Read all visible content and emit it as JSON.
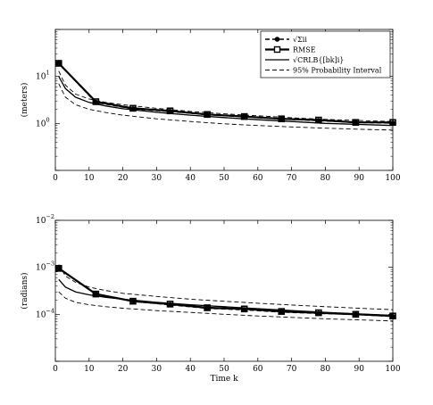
{
  "chart_data": [
    {
      "type": "line",
      "title": "",
      "xlabel": "",
      "ylabel": "(meters)",
      "yscale": "log",
      "xlim": [
        0,
        100
      ],
      "ylim_exp": [
        -1,
        2
      ],
      "x_ticks": [
        0,
        10,
        20,
        30,
        40,
        50,
        60,
        70,
        80,
        90,
        100
      ],
      "x_tick_labels": [
        "0",
        "10",
        "20",
        "30",
        "40",
        "50",
        "60",
        "70",
        "80",
        "90",
        "100"
      ],
      "y_ticks": [
        1,
        10
      ],
      "y_tick_bases": [
        "10",
        "10"
      ],
      "y_tick_exps": [
        "0",
        "1"
      ],
      "grid": false,
      "legend_position": "top-right",
      "legend": [
        {
          "label": "√Σii",
          "style": "dash-circle"
        },
        {
          "label": "RMSE",
          "style": "solid-square"
        },
        {
          "label": "√CRLB{[bk]i}",
          "style": "solid"
        },
        {
          "label": "95% Probability Interval",
          "style": "dashed"
        }
      ],
      "series": [
        {
          "name": "√Σii",
          "style": "dash-circle",
          "x": [
            1,
            12,
            23,
            34,
            45,
            56,
            67,
            78,
            89,
            100
          ],
          "y": [
            19,
            2.8,
            2.05,
            1.8,
            1.55,
            1.4,
            1.25,
            1.15,
            1.05,
            1.02
          ]
        },
        {
          "name": "RMSE",
          "style": "solid-square",
          "x": [
            1,
            12,
            23,
            34,
            45,
            56,
            67,
            78,
            89,
            100
          ],
          "y": [
            19,
            2.9,
            2.1,
            1.85,
            1.55,
            1.4,
            1.25,
            1.18,
            1.05,
            1.05
          ]
        },
        {
          "name": "√CRLB{[bk]i}",
          "style": "solid",
          "x": [
            1,
            3,
            6,
            10,
            15,
            20,
            30,
            40,
            50,
            60,
            70,
            80,
            90,
            100
          ],
          "y": [
            10,
            5.5,
            3.6,
            2.8,
            2.35,
            2.05,
            1.72,
            1.5,
            1.33,
            1.2,
            1.1,
            1.0,
            0.95,
            0.9
          ]
        },
        {
          "name": "95% upper",
          "style": "dashed",
          "x": [
            1,
            3,
            6,
            10,
            15,
            20,
            30,
            40,
            50,
            60,
            70,
            80,
            90,
            100
          ],
          "y": [
            13,
            6.5,
            4.2,
            3.3,
            2.8,
            2.5,
            2.1,
            1.8,
            1.6,
            1.45,
            1.32,
            1.22,
            1.15,
            1.1
          ]
        },
        {
          "name": "95% lower",
          "style": "dashed",
          "x": [
            1,
            3,
            6,
            10,
            15,
            20,
            30,
            40,
            50,
            60,
            70,
            80,
            90,
            100
          ],
          "y": [
            7,
            3.6,
            2.5,
            2.0,
            1.7,
            1.5,
            1.25,
            1.1,
            0.98,
            0.9,
            0.84,
            0.79,
            0.75,
            0.72
          ]
        }
      ]
    },
    {
      "type": "line",
      "title": "",
      "xlabel": "Time k",
      "ylabel": "(radians)",
      "yscale": "log",
      "xlim": [
        0,
        100
      ],
      "ylim_exp": [
        -5,
        -2
      ],
      "x_ticks": [
        0,
        10,
        20,
        30,
        40,
        50,
        60,
        70,
        80,
        90,
        100
      ],
      "x_tick_labels": [
        "0",
        "10",
        "20",
        "30",
        "40",
        "50",
        "60",
        "70",
        "80",
        "90",
        "100"
      ],
      "y_ticks": [
        0.0001,
        0.001,
        0.01
      ],
      "y_tick_bases": [
        "10",
        "10",
        "10"
      ],
      "y_tick_exps": [
        "−4",
        "−3",
        "−2"
      ],
      "grid": false,
      "series": [
        {
          "name": "√Σii",
          "style": "dash-circle",
          "x": [
            1,
            12,
            23,
            34,
            45,
            56,
            67,
            78,
            89,
            100
          ],
          "y": [
            0.00095,
            0.00027,
            0.00019,
            0.00016,
            0.000135,
            0.000125,
            0.000112,
            0.000105,
            0.0001,
            9e-05
          ]
        },
        {
          "name": "RMSE",
          "style": "solid-square",
          "x": [
            1,
            12,
            23,
            34,
            45,
            56,
            67,
            78,
            89,
            100
          ],
          "y": [
            0.00095,
            0.00027,
            0.00019,
            0.000165,
            0.000138,
            0.00013,
            0.000115,
            0.000108,
            0.0001,
            9.2e-05
          ]
        },
        {
          "name": "√CRLB{[bk]i}",
          "style": "solid",
          "x": [
            1,
            3,
            6,
            10,
            15,
            20,
            30,
            40,
            50,
            60,
            70,
            80,
            90,
            100
          ],
          "y": [
            0.00055,
            0.00038,
            0.0003,
            0.00026,
            0.00023,
            0.00021,
            0.00018,
            0.00016,
            0.000145,
            0.000132,
            0.00012,
            0.00011,
            0.000102,
            9.5e-05
          ]
        },
        {
          "name": "95% upper",
          "style": "dashed",
          "x": [
            1,
            3,
            6,
            10,
            15,
            20,
            30,
            40,
            50,
            60,
            70,
            80,
            90,
            100
          ],
          "y": [
            0.00115,
            0.00065,
            0.00048,
            0.00038,
            0.00032,
            0.00028,
            0.00024,
            0.00021,
            0.00019,
            0.000172,
            0.000158,
            0.000145,
            0.000135,
            0.000125
          ]
        },
        {
          "name": "95% lower",
          "style": "dashed",
          "x": [
            1,
            3,
            6,
            10,
            15,
            20,
            30,
            40,
            50,
            60,
            70,
            80,
            90,
            100
          ],
          "y": [
            0.0003,
            0.00022,
            0.00018,
            0.00016,
            0.000145,
            0.000135,
            0.00012,
            0.00011,
            0.0001,
            9.2e-05,
            8.6e-05,
            8e-05,
            7.6e-05,
            7.2e-05
          ]
        }
      ]
    }
  ]
}
